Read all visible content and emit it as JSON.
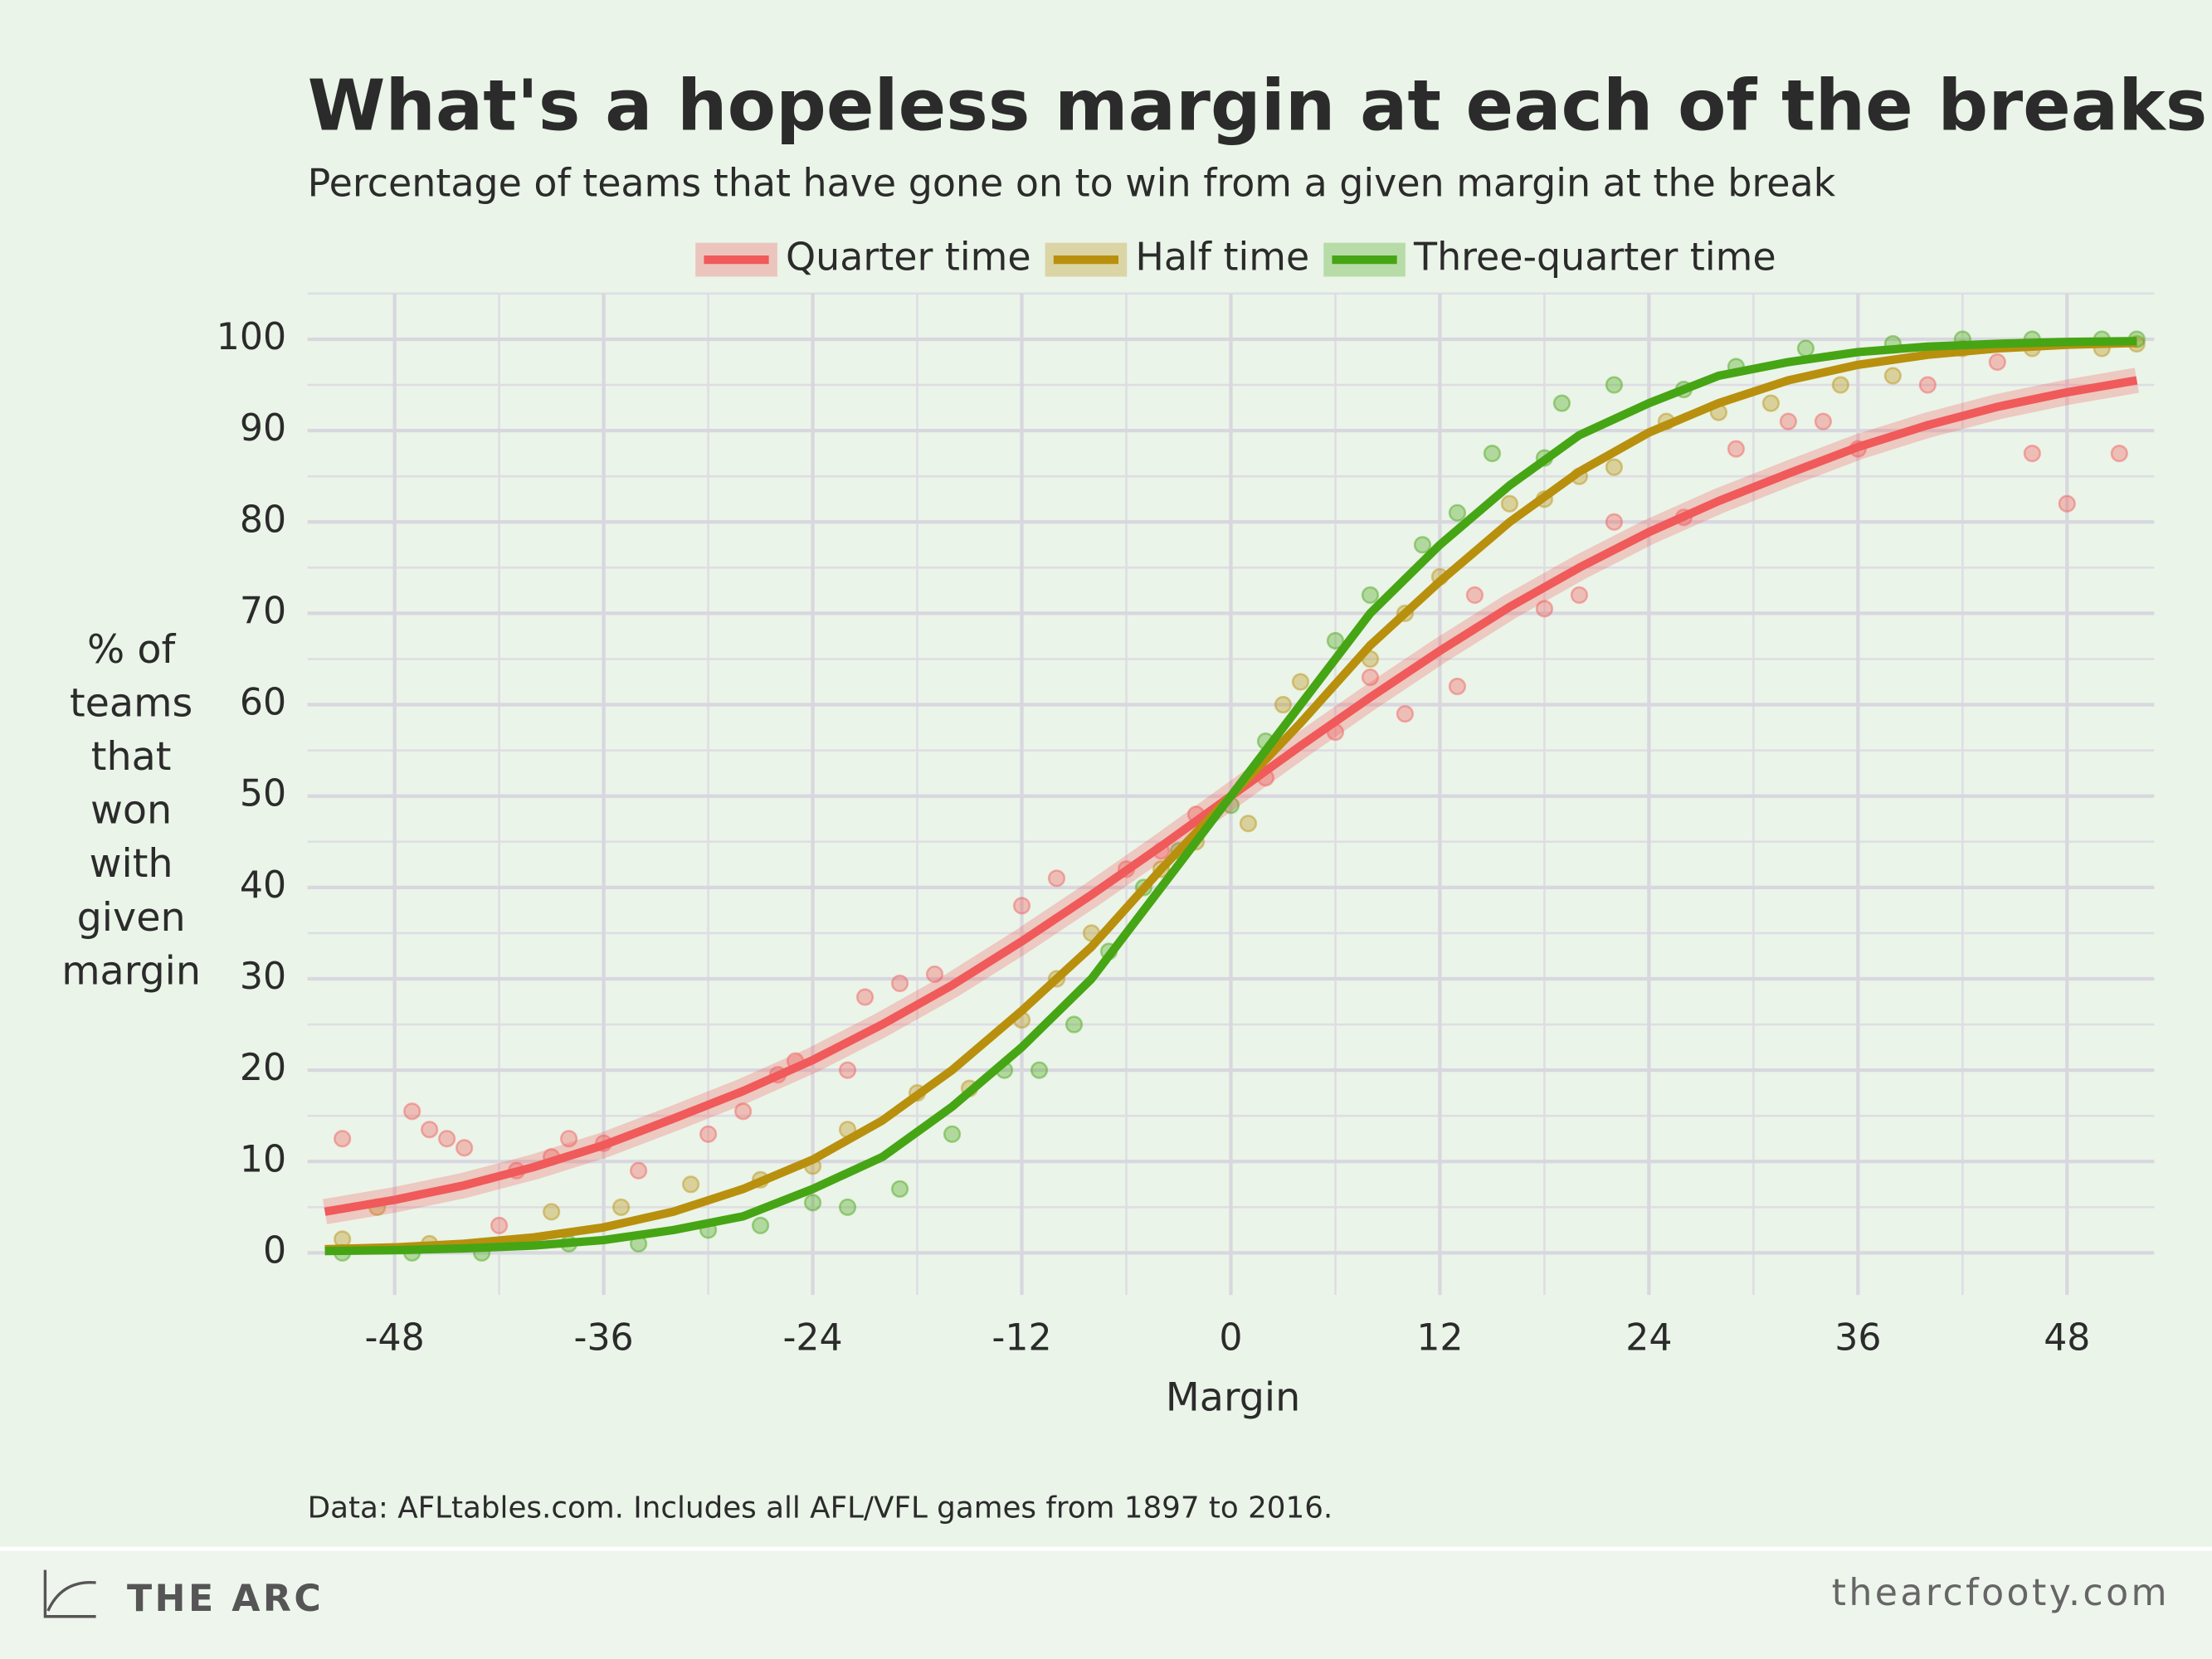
{
  "chart_data": {
    "type": "line",
    "title": "What's a hopeless margin at each of the breaks?",
    "subtitle": "Percentage of teams that have gone on to win from a given margin at the break",
    "ylabel_lines": [
      "% of",
      "teams",
      "that",
      "won",
      "with",
      "given",
      "margin"
    ],
    "xlabel": "Margin",
    "source": "Data: AFLtables.com. Includes all AFL/VFL games from 1897 to 2016.",
    "brand": "THE ARC",
    "url": "thearcfooty.com",
    "xlim": [
      -53,
      53
    ],
    "ylim": [
      -4.6,
      105
    ],
    "xticks": [
      -48,
      -36,
      -24,
      -12,
      0,
      12,
      24,
      36,
      48
    ],
    "yticks": [
      0,
      10,
      20,
      30,
      40,
      50,
      60,
      70,
      80,
      90,
      100
    ],
    "grid": true,
    "series": [
      {
        "name": "Quarter time",
        "color": "#f05a5a",
        "band": true,
        "x": [
          -52,
          -48,
          -44,
          -40,
          -36,
          -32,
          -28,
          -24,
          -20,
          -16,
          -12,
          -8,
          -4,
          0,
          4,
          8,
          12,
          16,
          20,
          24,
          28,
          32,
          36,
          40,
          44,
          48,
          52
        ],
        "values": [
          4.5,
          5.8,
          7.4,
          9.4,
          11.8,
          14.7,
          17.7,
          21.1,
          25,
          29.3,
          34.1,
          39.2,
          44.5,
          50,
          55.5,
          60.8,
          65.9,
          70.7,
          75,
          78.9,
          82.3,
          85.3,
          88.2,
          90.6,
          92.6,
          94.2,
          95.5
        ],
        "scatter_x": [
          -51,
          -47,
          -46,
          -45,
          -44,
          -42,
          -41,
          -39,
          -38,
          -36,
          -34,
          -30,
          -28,
          -26,
          -25,
          -22,
          -21,
          -19,
          -17,
          -12,
          -10,
          -6,
          -4,
          -2,
          2,
          6,
          8,
          10,
          13,
          14,
          18,
          20,
          22,
          26,
          29,
          32,
          34,
          36,
          40,
          44,
          46,
          48,
          51
        ],
        "scatter_y": [
          12.5,
          15.5,
          13.5,
          12.5,
          11.5,
          3,
          9,
          10.5,
          12.5,
          12,
          9,
          13,
          15.5,
          19.5,
          21,
          20,
          28,
          29.5,
          30.5,
          38,
          41,
          42,
          44,
          48,
          52,
          57,
          63,
          59,
          62,
          72,
          70.5,
          72,
          80,
          80.5,
          88,
          91,
          91,
          88,
          95,
          97.5,
          87.5,
          82,
          87.5
        ]
      },
      {
        "name": "Half time",
        "color": "#b8900e",
        "band": false,
        "x": [
          -52,
          -48,
          -44,
          -40,
          -36,
          -32,
          -28,
          -24,
          -20,
          -16,
          -12,
          -8,
          -4,
          0,
          4,
          8,
          12,
          16,
          20,
          24,
          28,
          32,
          36,
          40,
          44,
          48,
          52
        ],
        "values": [
          0.4,
          0.6,
          1,
          1.7,
          2.8,
          4.5,
          7,
          10.2,
          14.5,
          20,
          26.5,
          33.5,
          42,
          50,
          58,
          66.5,
          73.5,
          80,
          85.5,
          89.8,
          93,
          95.5,
          97.2,
          98.3,
          99,
          99.4,
          99.6
        ],
        "scatter_x": [
          -51,
          -49,
          -46,
          -39,
          -35,
          -31,
          -27,
          -24,
          -22,
          -18,
          -15,
          -12,
          -10,
          -8,
          -4,
          -2,
          1,
          3,
          4,
          8,
          10,
          12,
          16,
          18,
          20,
          22,
          25,
          28,
          31,
          35,
          38,
          42,
          46,
          50,
          52
        ],
        "scatter_y": [
          1.5,
          5,
          1,
          4.5,
          5,
          7.5,
          8,
          9.5,
          13.5,
          17.5,
          18,
          25.5,
          30,
          35,
          42,
          45,
          47,
          60,
          62.5,
          65,
          70,
          74,
          82,
          82.5,
          85,
          86,
          91,
          92,
          93,
          95,
          96,
          99,
          99,
          99,
          99.5
        ]
      },
      {
        "name": "Three-quarter time",
        "color": "#46a514",
        "band": false,
        "x": [
          -52,
          -48,
          -44,
          -40,
          -36,
          -32,
          -28,
          -24,
          -20,
          -16,
          -12,
          -8,
          -4,
          0,
          4,
          8,
          12,
          16,
          20,
          24,
          28,
          32,
          36,
          40,
          44,
          48,
          52
        ],
        "values": [
          0.2,
          0.3,
          0.5,
          0.8,
          1.4,
          2.5,
          4,
          7,
          10.5,
          16,
          22.5,
          30,
          40,
          50,
          60,
          70,
          77.5,
          84,
          89.5,
          93,
          96,
          97.5,
          98.6,
          99.2,
          99.5,
          99.7,
          99.8
        ],
        "scatter_x": [
          -51,
          -47,
          -43,
          -38,
          -34,
          -30,
          -27,
          -24,
          -22,
          -19,
          -16,
          -13,
          -11,
          -9,
          -7,
          -5,
          -3,
          0,
          2,
          6,
          8,
          11,
          13,
          15,
          18,
          19,
          22,
          26,
          29,
          33,
          38,
          42,
          46,
          50,
          52
        ],
        "scatter_y": [
          0,
          0,
          0,
          1,
          1,
          2.5,
          3,
          5.5,
          5,
          7,
          13,
          20,
          20,
          25,
          33,
          40,
          44,
          49,
          56,
          67,
          72,
          77.5,
          81,
          87.5,
          87,
          93,
          95,
          94.5,
          97,
          99,
          99.5,
          100,
          100,
          100,
          100
        ]
      }
    ]
  }
}
